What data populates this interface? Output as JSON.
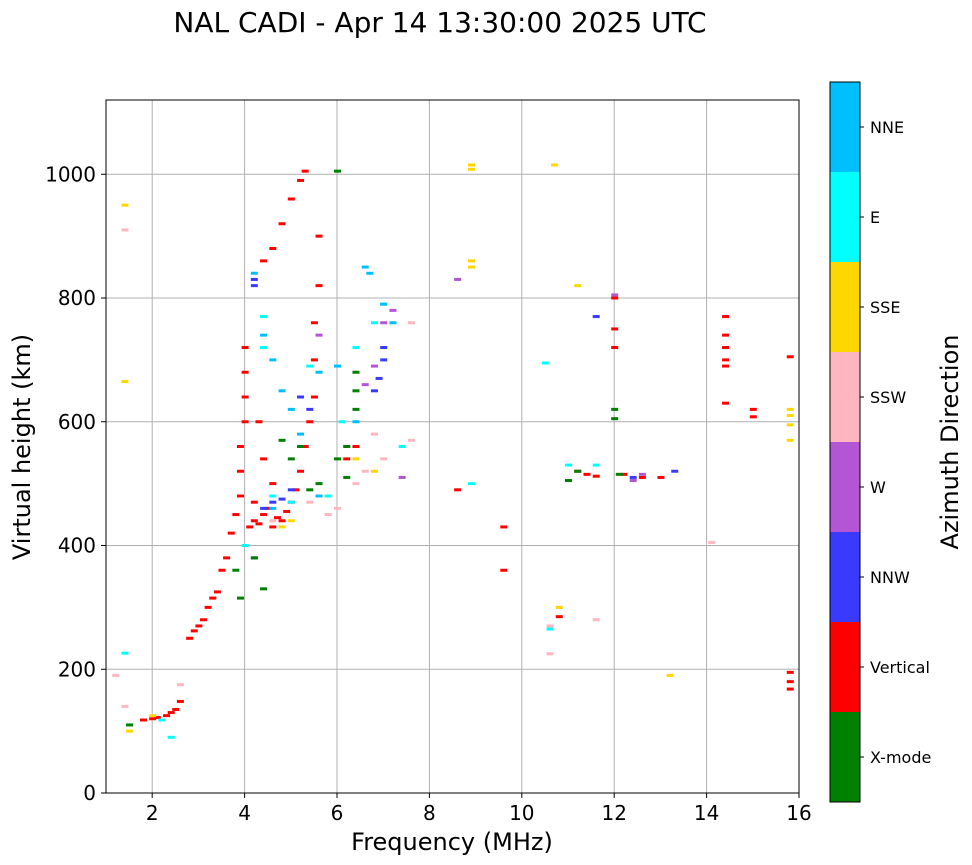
{
  "chart_data": {
    "type": "scatter",
    "title": "NAL CADI - Apr 14 13:30:00 2025 UTC",
    "xlabel": "Frequency (MHz)",
    "ylabel": "Virtual height (km)",
    "xlim": [
      1.0,
      16.0
    ],
    "ylim": [
      0,
      1120
    ],
    "xticks": [
      2,
      4,
      6,
      8,
      10,
      12,
      14,
      16
    ],
    "yticks": [
      0,
      200,
      400,
      600,
      800,
      1000
    ],
    "grid": true,
    "colorbar": {
      "label": "Azimuth Direction",
      "categories": [
        {
          "name": "X-mode",
          "color": "#008000"
        },
        {
          "name": "Vertical",
          "color": "#ff0000"
        },
        {
          "name": "NNW",
          "color": "#3a3aff"
        },
        {
          "name": "W",
          "color": "#b455d6"
        },
        {
          "name": "SSW",
          "color": "#ffb6c1"
        },
        {
          "name": "SSE",
          "color": "#ffd700"
        },
        {
          "name": "E",
          "color": "#00ffff"
        },
        {
          "name": "NNE",
          "color": "#00bfff"
        }
      ]
    },
    "series": [
      {
        "name": "Vertical",
        "points": [
          [
            1.8,
            118
          ],
          [
            2.0,
            120
          ],
          [
            2.1,
            122
          ],
          [
            2.2,
            118
          ],
          [
            2.3,
            125
          ],
          [
            2.4,
            130
          ],
          [
            2.5,
            135
          ],
          [
            2.6,
            148
          ],
          [
            2.8,
            250
          ],
          [
            2.9,
            262
          ],
          [
            3.0,
            270
          ],
          [
            3.1,
            280
          ],
          [
            3.2,
            300
          ],
          [
            3.3,
            315
          ],
          [
            3.4,
            325
          ],
          [
            3.5,
            360
          ],
          [
            3.6,
            380
          ],
          [
            3.7,
            420
          ],
          [
            3.8,
            450
          ],
          [
            3.9,
            480
          ],
          [
            3.9,
            520
          ],
          [
            3.9,
            560
          ],
          [
            4.0,
            600
          ],
          [
            4.0,
            640
          ],
          [
            4.0,
            680
          ],
          [
            4.0,
            720
          ],
          [
            4.1,
            430
          ],
          [
            4.2,
            440
          ],
          [
            4.3,
            435
          ],
          [
            4.4,
            450
          ],
          [
            4.5,
            460
          ],
          [
            4.6,
            430
          ],
          [
            4.7,
            445
          ],
          [
            4.8,
            440
          ],
          [
            4.9,
            455
          ],
          [
            5.0,
            470
          ],
          [
            5.1,
            490
          ],
          [
            5.2,
            520
          ],
          [
            5.3,
            560
          ],
          [
            5.4,
            600
          ],
          [
            5.5,
            640
          ],
          [
            5.5,
            700
          ],
          [
            5.5,
            760
          ],
          [
            5.6,
            820
          ],
          [
            5.6,
            900
          ],
          [
            4.4,
            860
          ],
          [
            4.6,
            880
          ],
          [
            4.8,
            920
          ],
          [
            5.0,
            960
          ],
          [
            5.2,
            990
          ],
          [
            5.3,
            1005
          ],
          [
            4.3,
            600
          ],
          [
            4.4,
            540
          ],
          [
            4.2,
            470
          ],
          [
            4.6,
            500
          ],
          [
            11.2,
            520
          ],
          [
            11.4,
            515
          ],
          [
            11.6,
            512
          ],
          [
            12.2,
            515
          ],
          [
            12.6,
            510
          ],
          [
            13.0,
            510
          ],
          [
            12.0,
            720
          ],
          [
            12.0,
            750
          ],
          [
            12.0,
            800
          ],
          [
            14.4,
            770
          ],
          [
            14.4,
            740
          ],
          [
            14.4,
            720
          ],
          [
            14.4,
            700
          ],
          [
            14.4,
            690
          ],
          [
            14.4,
            630
          ],
          [
            15.0,
            620
          ],
          [
            15.0,
            608
          ],
          [
            15.8,
            705
          ],
          [
            15.8,
            195
          ],
          [
            15.8,
            180
          ],
          [
            15.8,
            168
          ],
          [
            8.6,
            490
          ],
          [
            9.6,
            430
          ],
          [
            9.6,
            360
          ],
          [
            10.8,
            285
          ],
          [
            6.2,
            540
          ],
          [
            6.4,
            560
          ]
        ]
      },
      {
        "name": "NNW",
        "points": [
          [
            4.2,
            830
          ],
          [
            4.2,
            820
          ],
          [
            4.4,
            460
          ],
          [
            4.6,
            470
          ],
          [
            4.8,
            475
          ],
          [
            5.0,
            490
          ],
          [
            5.2,
            640
          ],
          [
            5.4,
            620
          ],
          [
            6.8,
            650
          ],
          [
            6.9,
            670
          ],
          [
            7.0,
            700
          ],
          [
            7.0,
            720
          ],
          [
            12.4,
            510
          ],
          [
            13.3,
            520
          ],
          [
            11.6,
            770
          ],
          [
            4.2,
            380
          ]
        ]
      },
      {
        "name": "W",
        "points": [
          [
            6.6,
            660
          ],
          [
            6.8,
            690
          ],
          [
            7.0,
            760
          ],
          [
            7.2,
            780
          ],
          [
            12.4,
            505
          ],
          [
            12.6,
            515
          ],
          [
            8.6,
            830
          ],
          [
            7.4,
            510
          ],
          [
            6.2,
            560
          ],
          [
            12.0,
            805
          ],
          [
            5.6,
            740
          ]
        ]
      },
      {
        "name": "SSW",
        "points": [
          [
            1.4,
            910
          ],
          [
            1.4,
            140
          ],
          [
            5.8,
            450
          ],
          [
            6.0,
            460
          ],
          [
            6.4,
            500
          ],
          [
            6.6,
            520
          ],
          [
            7.0,
            540
          ],
          [
            7.6,
            570
          ],
          [
            7.6,
            760
          ],
          [
            10.6,
            270
          ],
          [
            11.6,
            280
          ],
          [
            14.1,
            405
          ],
          [
            2.6,
            175
          ],
          [
            4.6,
            440
          ],
          [
            5.4,
            470
          ],
          [
            6.8,
            580
          ],
          [
            10.6,
            225
          ],
          [
            1.2,
            190
          ]
        ]
      },
      {
        "name": "SSE",
        "points": [
          [
            1.4,
            950
          ],
          [
            1.4,
            665
          ],
          [
            2.0,
            125
          ],
          [
            4.8,
            430
          ],
          [
            5.0,
            440
          ],
          [
            6.4,
            540
          ],
          [
            6.8,
            520
          ],
          [
            8.9,
            860
          ],
          [
            8.9,
            850
          ],
          [
            8.9,
            1015
          ],
          [
            8.9,
            1008
          ],
          [
            10.7,
            1015
          ],
          [
            11.2,
            820
          ],
          [
            10.8,
            300
          ],
          [
            13.2,
            190
          ],
          [
            15.8,
            620
          ],
          [
            15.8,
            610
          ],
          [
            15.8,
            595
          ],
          [
            15.8,
            570
          ],
          [
            1.5,
            100
          ]
        ]
      },
      {
        "name": "E",
        "points": [
          [
            1.4,
            226
          ],
          [
            1.5,
            110
          ],
          [
            2.2,
            118
          ],
          [
            2.4,
            90
          ],
          [
            4.4,
            770
          ],
          [
            4.4,
            720
          ],
          [
            4.6,
            480
          ],
          [
            5.0,
            470
          ],
          [
            5.4,
            690
          ],
          [
            5.8,
            480
          ],
          [
            6.1,
            600
          ],
          [
            6.4,
            720
          ],
          [
            6.8,
            760
          ],
          [
            7.0,
            790
          ],
          [
            7.4,
            560
          ],
          [
            8.9,
            500
          ],
          [
            10.6,
            265
          ],
          [
            10.5,
            695
          ],
          [
            11.0,
            530
          ],
          [
            11.6,
            530
          ],
          [
            4.0,
            400
          ]
        ]
      },
      {
        "name": "NNE",
        "points": [
          [
            4.2,
            840
          ],
          [
            4.4,
            740
          ],
          [
            4.6,
            700
          ],
          [
            4.8,
            650
          ],
          [
            5.0,
            620
          ],
          [
            5.2,
            580
          ],
          [
            5.6,
            680
          ],
          [
            6.6,
            850
          ],
          [
            6.7,
            840
          ],
          [
            7.0,
            790
          ],
          [
            7.2,
            760
          ],
          [
            6.0,
            690
          ],
          [
            6.4,
            600
          ],
          [
            4.6,
            460
          ],
          [
            5.6,
            480
          ]
        ]
      },
      {
        "name": "X-mode",
        "points": [
          [
            1.5,
            110
          ],
          [
            3.8,
            360
          ],
          [
            3.9,
            315
          ],
          [
            4.2,
            380
          ],
          [
            4.8,
            570
          ],
          [
            5.0,
            540
          ],
          [
            5.4,
            490
          ],
          [
            5.6,
            500
          ],
          [
            6.0,
            540
          ],
          [
            6.2,
            560
          ],
          [
            6.4,
            620
          ],
          [
            6.4,
            650
          ],
          [
            6.4,
            680
          ],
          [
            6.0,
            1005
          ],
          [
            11.0,
            505
          ],
          [
            11.2,
            520
          ],
          [
            12.0,
            620
          ],
          [
            12.0,
            605
          ],
          [
            12.1,
            515
          ],
          [
            4.4,
            330
          ],
          [
            5.2,
            560
          ],
          [
            6.2,
            510
          ]
        ]
      }
    ]
  }
}
